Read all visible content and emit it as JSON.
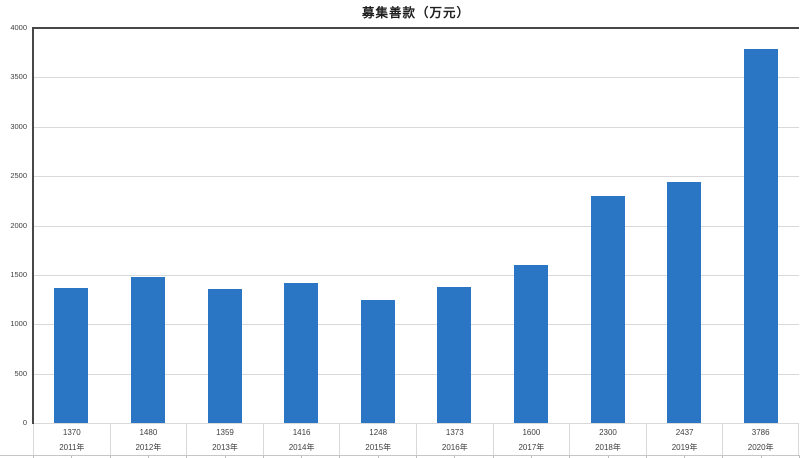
{
  "chart_data": {
    "type": "bar",
    "title": "募集善款（万元）",
    "categories": [
      "2011年",
      "2012年",
      "2013年",
      "2014年",
      "2015年",
      "2016年",
      "2017年",
      "2018年",
      "2019年",
      "2020年"
    ],
    "values": [
      1370,
      1480,
      1359,
      1416,
      1248,
      1373,
      1600,
      2300,
      2437,
      3786
    ],
    "value_labels": [
      "1370",
      "1480",
      "1359",
      "1416",
      "1248",
      "1373",
      "1600",
      "2300",
      "2437",
      "3786"
    ],
    "xlabel": "",
    "ylabel": "",
    "ylim": [
      0,
      4000
    ],
    "yticks": [
      0,
      500,
      1000,
      1500,
      2000,
      2500,
      3000,
      3500,
      4000
    ],
    "grid": true,
    "legend": "none",
    "bar_color": "#2B75C5"
  },
  "colors": {
    "bar": "#2B75C5",
    "axis": "#474747",
    "gridline": "#D9D9D9",
    "cell_border": "#D9D9D9",
    "text": "#3F3F3F",
    "title_text": "#1F1F1F"
  }
}
